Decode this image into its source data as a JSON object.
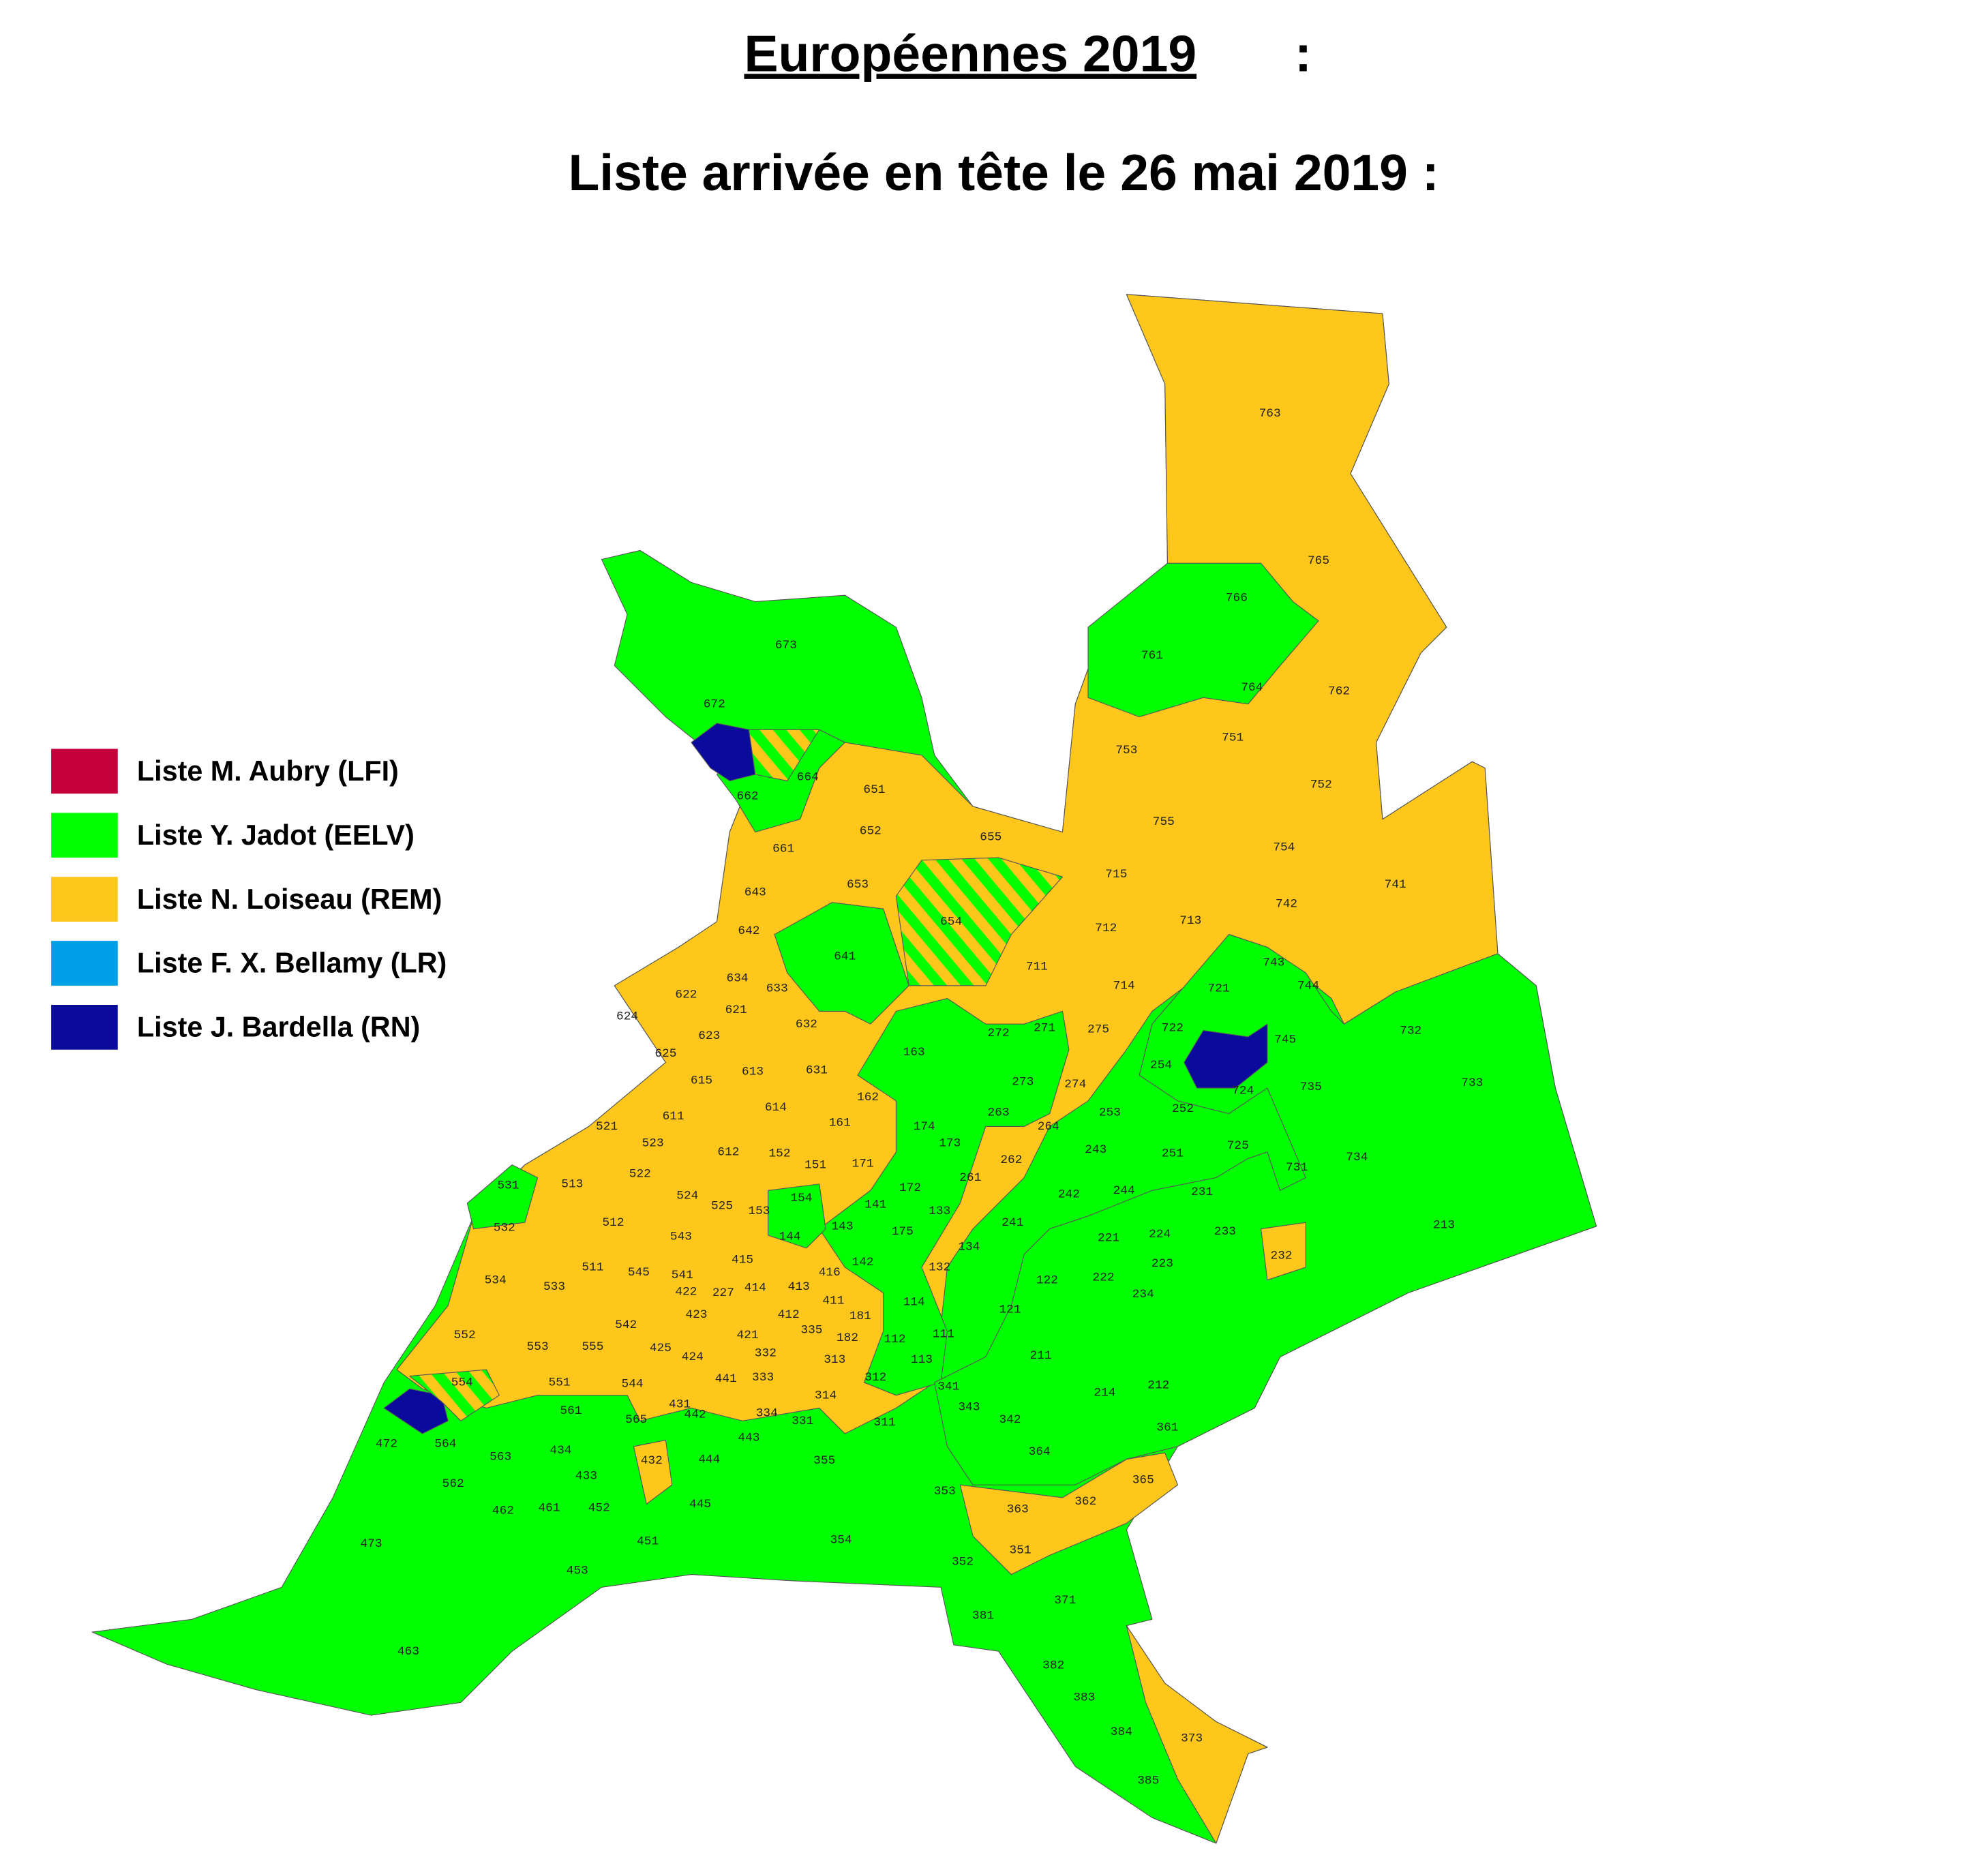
{
  "title": "Européennes 2019",
  "title_suffix": ":",
  "subtitle": "Liste arrivée en tête le 26 mai 2019 :",
  "legend": [
    {
      "name": "Liste M. Aubry (LFI)",
      "color": "#c4003c"
    },
    {
      "name": "Liste Y. Jadot (EELV)",
      "color": "#00ff00"
    },
    {
      "name": "Liste N. Loiseau (REM)",
      "color": "#ffc61c"
    },
    {
      "name": "Liste F. X. Bellamy (LR)",
      "color": "#00a0e8"
    },
    {
      "name": "Liste J. Bardella (RN)",
      "color": "#0a0a9c"
    }
  ],
  "precincts": [
    "763",
    "765",
    "766",
    "761",
    "762",
    "764",
    "751",
    "753",
    "752",
    "755",
    "754",
    "673",
    "672",
    "664",
    "662",
    "651",
    "652",
    "655",
    "661",
    "643",
    "653",
    "654",
    "715",
    "713",
    "712",
    "742",
    "741",
    "642",
    "641",
    "711",
    "714",
    "743",
    "721",
    "744",
    "634",
    "633",
    "622",
    "621",
    "624",
    "632",
    "623",
    "275",
    "271",
    "272",
    "722",
    "745",
    "732",
    "625",
    "163",
    "254",
    "613",
    "631",
    "615",
    "273",
    "274",
    "724",
    "735",
    "733",
    "162",
    "614",
    "252",
    "253",
    "263",
    "611",
    "161",
    "264",
    "521",
    "174",
    "725",
    "523",
    "173",
    "243",
    "612",
    "152",
    "251",
    "262",
    "734",
    "731",
    "171",
    "151",
    "261",
    "522",
    "531",
    "513",
    "172",
    "213",
    "231",
    "242",
    "244",
    "524",
    "525",
    "154",
    "141",
    "133",
    "153",
    "532",
    "512",
    "241",
    "233",
    "224",
    "221",
    "143",
    "175",
    "144",
    "543",
    "134",
    "232",
    "223",
    "511",
    "545",
    "541",
    "415",
    "142",
    "132",
    "222",
    "534",
    "533",
    "414",
    "413",
    "416",
    "122",
    "422",
    "227",
    "411",
    "234",
    "121",
    "114",
    "542",
    "423",
    "412",
    "181",
    "335",
    "182",
    "111",
    "552",
    "553",
    "555",
    "425",
    "421",
    "112",
    "332",
    "424",
    "313",
    "211",
    "113",
    "554",
    "551",
    "544",
    "441",
    "333",
    "312",
    "214",
    "212",
    "341",
    "314",
    "431",
    "343",
    "561",
    "565",
    "334",
    "331",
    "311",
    "442",
    "342",
    "361",
    "472",
    "564",
    "443",
    "563",
    "434",
    "432",
    "444",
    "355",
    "364",
    "433",
    "562",
    "365",
    "353",
    "462",
    "461",
    "452",
    "445",
    "362",
    "363",
    "451",
    "354",
    "473",
    "351",
    "453",
    "352",
    "371",
    "381",
    "463",
    "382",
    "383",
    "384",
    "373",
    "385"
  ]
}
